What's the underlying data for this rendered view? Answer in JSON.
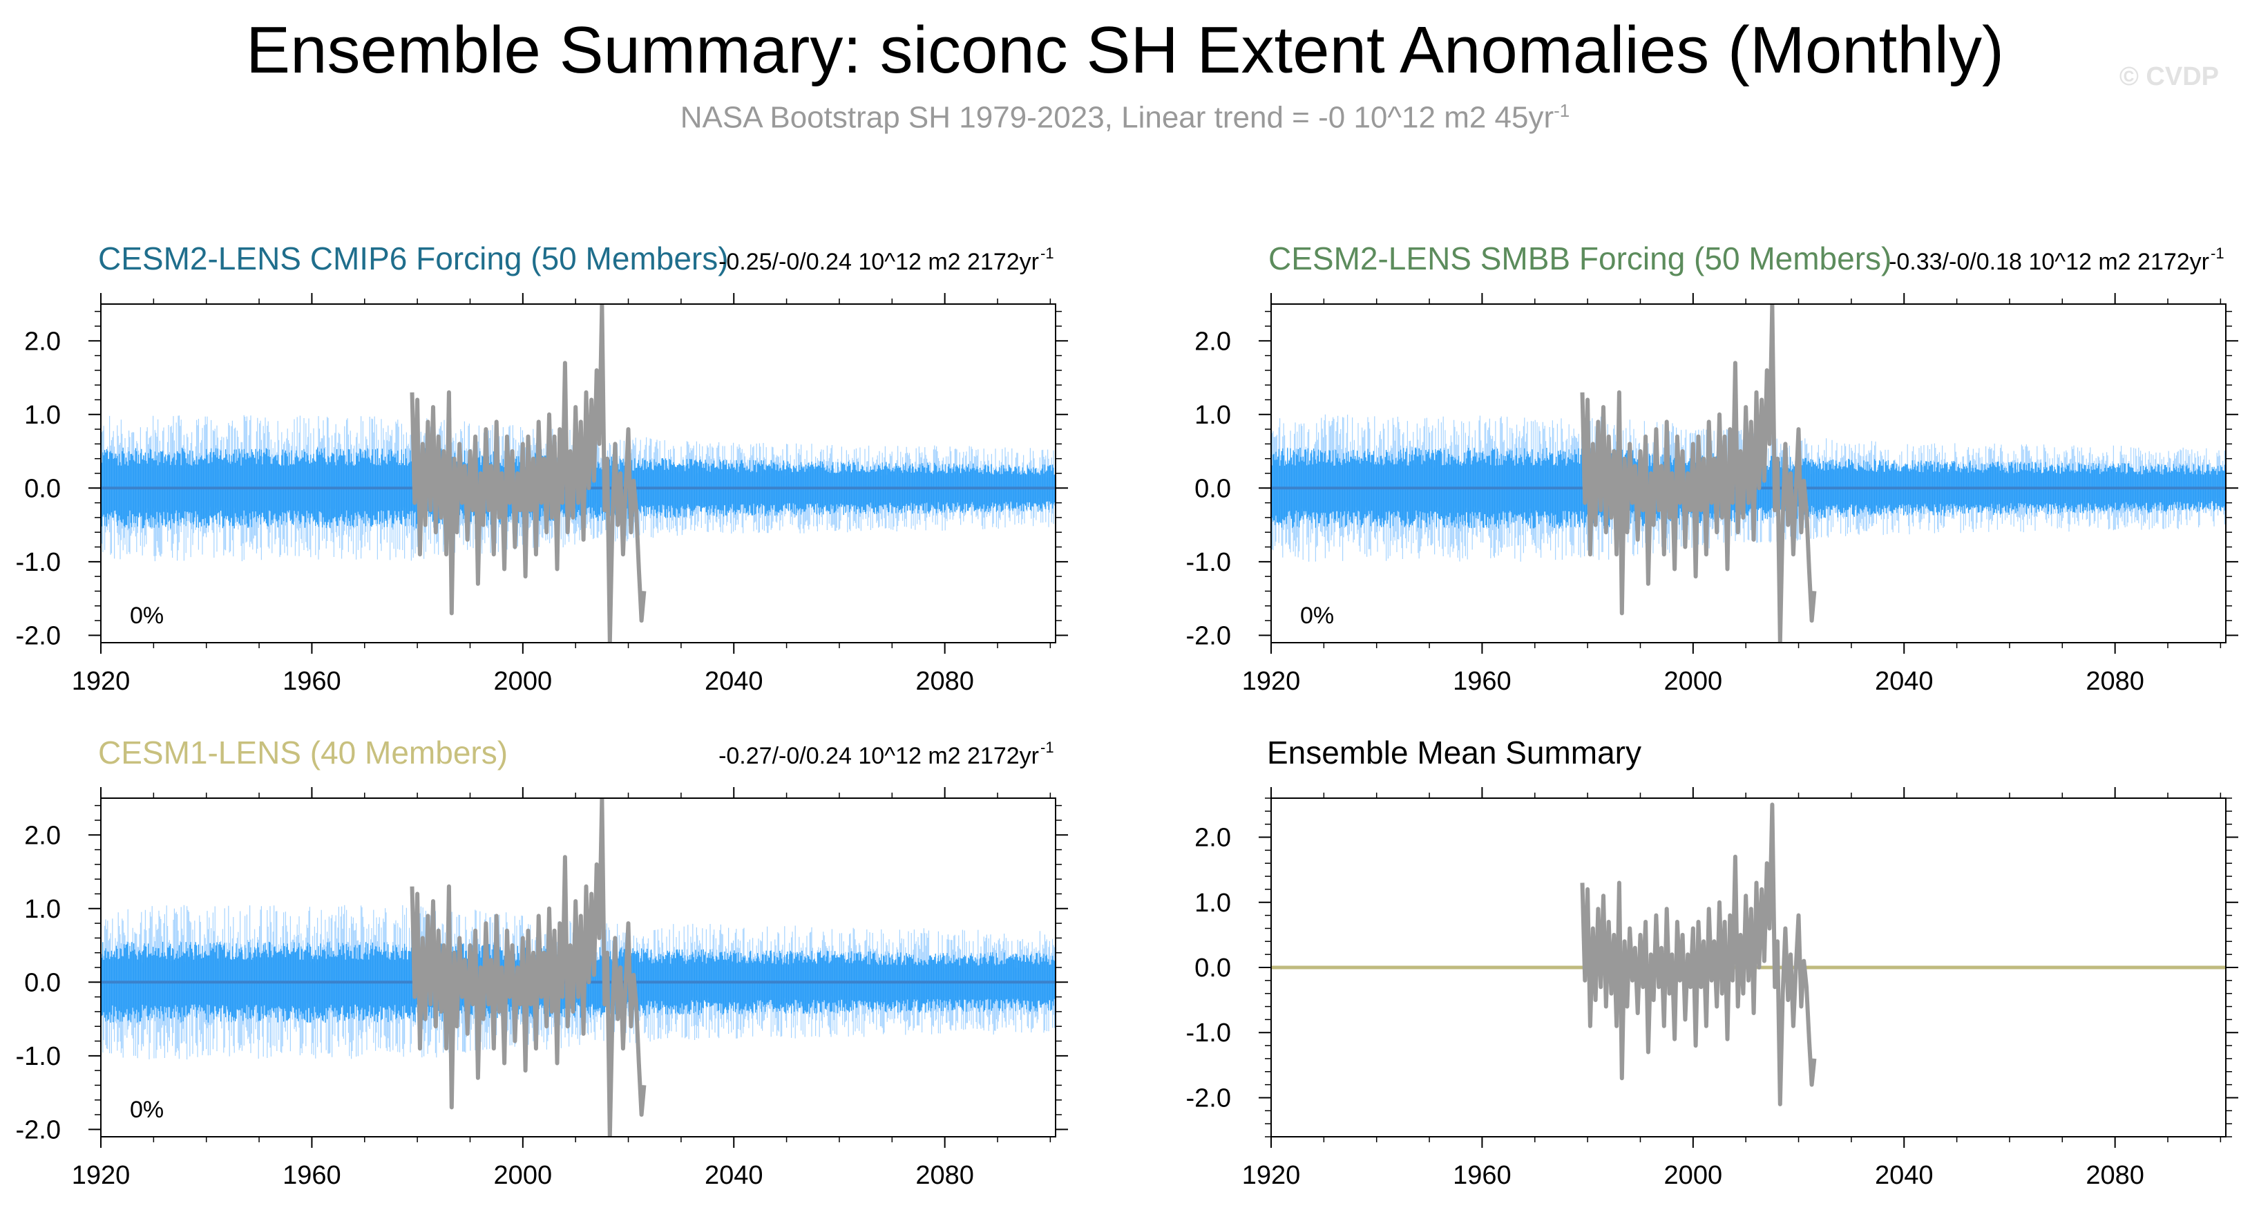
{
  "title": "Ensemble Summary: siconc SH Extent Anomalies (Monthly)",
  "subtitle": "NASA Bootstrap SH 1979-2023, Linear trend = -0 10^12 m2 45yr",
  "subtitle_sup": "-1",
  "copyright": "© CVDP",
  "colors": {
    "ens_light": "#a6d4ff",
    "ens_core": "#2a9df7",
    "ens_mean": "#3a82cc",
    "obs": "#999999",
    "mean_line": "#bfba7e"
  },
  "chart_data": [
    {
      "type": "line",
      "panel": "CESM2-LENS CMIP6 Forcing (50 Members)",
      "title": "CESM2-LENS CMIP6 Forcing (50 Members)",
      "title_color": "#1f6e8c",
      "trend": "-0.25/-0/0.24 10^12 m2 2172yr",
      "trend_sup": "-1",
      "pct_label": "0%",
      "xlim": [
        1920,
        2101
      ],
      "ylim": [
        -2.1,
        2.5
      ],
      "xticks": [
        "1920",
        "1960",
        "2000",
        "2040",
        "2080"
      ],
      "yticks": [
        "2.0",
        "1.0",
        "0.0",
        "-1.0",
        "-2.0"
      ],
      "spread_core": [
        [
          1920,
          0.55
        ],
        [
          1980,
          0.55
        ],
        [
          2030,
          0.4
        ],
        [
          2100,
          0.32
        ]
      ],
      "spread_outer": [
        [
          1920,
          1.0
        ],
        [
          1980,
          1.0
        ],
        [
          2030,
          0.65
        ],
        [
          2100,
          0.55
        ]
      ],
      "series": [
        "ensemble members (50)",
        "ensemble mean",
        "NASA Bootstrap SH"
      ]
    },
    {
      "type": "line",
      "panel": "CESM2-LENS SMBB Forcing (50 Members)",
      "title": "CESM2-LENS SMBB Forcing (50 Members)",
      "title_color": "#5c8c5c",
      "trend": "-0.33/-0/0.18 10^12 m2 2172yr",
      "trend_sup": "-1",
      "pct_label": "0%",
      "xlim": [
        1920,
        2101
      ],
      "ylim": [
        -2.1,
        2.5
      ],
      "xticks": [
        "1920",
        "1960",
        "2000",
        "2040",
        "2080"
      ],
      "yticks": [
        "2.0",
        "1.0",
        "0.0",
        "-1.0",
        "-2.0"
      ],
      "spread_core": [
        [
          1920,
          0.55
        ],
        [
          1980,
          0.55
        ],
        [
          2030,
          0.4
        ],
        [
          2100,
          0.32
        ]
      ],
      "spread_outer": [
        [
          1920,
          1.0
        ],
        [
          1980,
          1.0
        ],
        [
          2030,
          0.65
        ],
        [
          2100,
          0.55
        ]
      ],
      "series": [
        "ensemble members (50)",
        "ensemble mean",
        "NASA Bootstrap SH"
      ]
    },
    {
      "type": "line",
      "panel": "CESM1-LENS (40 Members)",
      "title": "CESM1-LENS (40 Members)",
      "title_color": "#c8c07e",
      "trend": "-0.27/-0/0.24 10^12 m2 2172yr",
      "trend_sup": "-1",
      "pct_label": "0%",
      "xlim": [
        1920,
        2101
      ],
      "ylim": [
        -2.1,
        2.5
      ],
      "xticks": [
        "1920",
        "1960",
        "2000",
        "2040",
        "2080"
      ],
      "yticks": [
        "2.0",
        "1.0",
        "0.0",
        "-1.0",
        "-2.0"
      ],
      "spread_core": [
        [
          1920,
          0.55
        ],
        [
          1980,
          0.55
        ],
        [
          2030,
          0.45
        ],
        [
          2100,
          0.4
        ]
      ],
      "spread_outer": [
        [
          1920,
          1.05
        ],
        [
          1980,
          1.05
        ],
        [
          2030,
          0.8
        ],
        [
          2100,
          0.7
        ]
      ],
      "series": [
        "ensemble members (40)",
        "ensemble mean",
        "NASA Bootstrap SH"
      ]
    },
    {
      "type": "line",
      "panel": "Ensemble Mean Summary",
      "title": "Ensemble Mean Summary",
      "title_color": "#000000",
      "trend": "",
      "trend_sup": "",
      "pct_label": "",
      "xlim": [
        1920,
        2101
      ],
      "ylim": [
        -2.6,
        2.6
      ],
      "xticks": [
        "1920",
        "1960",
        "2000",
        "2040",
        "2080"
      ],
      "yticks": [
        "2.0",
        "1.0",
        "0.0",
        "-1.0",
        "-2.0"
      ],
      "spread_core": [],
      "spread_outer": [],
      "series": [
        "ensemble mean (all)",
        "NASA Bootstrap SH"
      ]
    }
  ],
  "obs_series": {
    "name": "NASA Bootstrap SH",
    "x": [
      1979.0,
      1979.5,
      1980.0,
      1980.5,
      1981.0,
      1981.5,
      1982.0,
      1982.5,
      1983.0,
      1983.5,
      1984.0,
      1984.5,
      1985.0,
      1985.5,
      1986.0,
      1986.5,
      1987.0,
      1987.5,
      1988.0,
      1988.5,
      1989.0,
      1989.5,
      1990.0,
      1990.5,
      1991.0,
      1991.5,
      1992.0,
      1992.5,
      1993.0,
      1993.5,
      1994.0,
      1994.5,
      1995.0,
      1995.5,
      1996.0,
      1996.5,
      1997.0,
      1997.5,
      1998.0,
      1998.5,
      1999.0,
      1999.5,
      2000.0,
      2000.5,
      2001.0,
      2001.5,
      2002.0,
      2002.5,
      2003.0,
      2003.5,
      2004.0,
      2004.5,
      2005.0,
      2005.5,
      2006.0,
      2006.5,
      2007.0,
      2007.5,
      2008.0,
      2008.5,
      2009.0,
      2009.5,
      2010.0,
      2010.5,
      2011.0,
      2011.5,
      2012.0,
      2012.5,
      2013.0,
      2013.5,
      2014.0,
      2014.5,
      2015.0,
      2015.5,
      2016.0,
      2016.5,
      2017.0,
      2017.5,
      2018.0,
      2018.5,
      2019.0,
      2019.5,
      2020.0,
      2020.5,
      2021.0,
      2021.5,
      2022.0,
      2022.5,
      2023.0
    ],
    "values": [
      1.3,
      -0.2,
      1.2,
      -0.9,
      0.6,
      -0.5,
      0.9,
      -0.3,
      1.1,
      -0.6,
      0.7,
      -0.4,
      0.5,
      -0.9,
      1.3,
      -1.7,
      0.4,
      -0.6,
      0.6,
      -0.2,
      0.3,
      -0.7,
      0.5,
      -0.3,
      0.7,
      -1.3,
      0.2,
      -0.5,
      0.8,
      -0.3,
      0.3,
      -0.9,
      0.9,
      -0.4,
      0.2,
      -1.1,
      0.7,
      -0.2,
      0.5,
      -0.8,
      0.2,
      -0.3,
      0.6,
      -1.2,
      0.7,
      -0.3,
      0.4,
      -0.9,
      0.9,
      -0.2,
      0.4,
      -0.6,
      1.0,
      -0.4,
      0.7,
      -1.1,
      0.8,
      -0.2,
      1.7,
      -0.6,
      0.5,
      -0.4,
      1.1,
      -0.2,
      0.9,
      -0.7,
      1.3,
      0.0,
      1.2,
      0.1,
      1.6,
      0.6,
      2.5,
      -0.3,
      0.4,
      -2.1,
      -0.4,
      0.6,
      -0.5,
      0.2,
      -0.9,
      0.0,
      0.8,
      -0.6,
      0.1,
      -0.3,
      -1.1,
      -1.8,
      -1.4
    ]
  }
}
